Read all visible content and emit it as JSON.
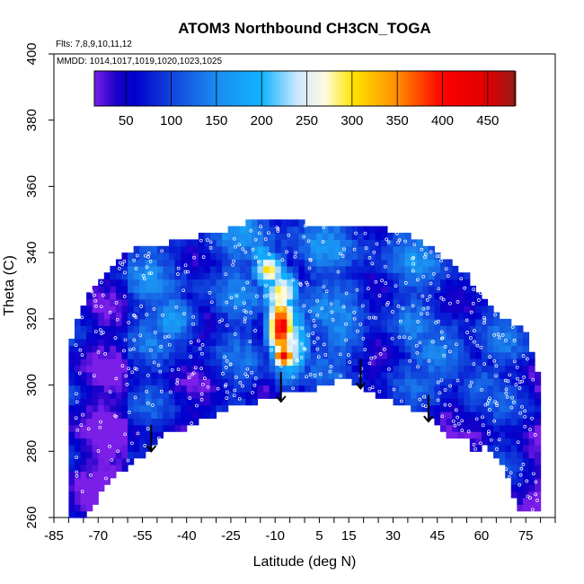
{
  "chart_data": {
    "type": "heatmap",
    "title": "ATOM3 Northbound CH3CN_TOGA",
    "annotations": {
      "flights": "Flts: 7,8,9,10,11,12",
      "dates": "MMDD: 1014,1017,1019,1020,1023,1025"
    },
    "xlabel": "Latitude (deg N)",
    "ylabel": "Theta (C)",
    "xlim": [
      -85,
      85
    ],
    "ylim": [
      260,
      400
    ],
    "x_ticks": [
      -85,
      -80,
      -75,
      -70,
      -65,
      -60,
      -55,
      -50,
      -45,
      -40,
      -35,
      -30,
      -25,
      -20,
      -15,
      -10,
      -5,
      0,
      5,
      10,
      15,
      20,
      25,
      30,
      35,
      40,
      45,
      50,
      55,
      60,
      65,
      70,
      75,
      80,
      85
    ],
    "x_tick_labels": [
      "-85",
      "-70",
      "-55",
      "-40",
      "-25",
      "-10",
      "5",
      "15",
      "30",
      "45",
      "60",
      "75"
    ],
    "x_tick_label_values": [
      -85,
      -70,
      -55,
      -40,
      -25,
      -10,
      5,
      15,
      30,
      45,
      60,
      75
    ],
    "y_ticks": [
      260,
      280,
      300,
      320,
      340,
      360,
      380,
      400
    ],
    "y_tick_labels": [
      "260",
      "280",
      "300",
      "320",
      "340",
      "360",
      "380",
      "400"
    ],
    "colorbar": {
      "range": [
        15,
        480
      ],
      "ticks": [
        50,
        100,
        150,
        200,
        250,
        300,
        350,
        400,
        450
      ],
      "tick_labels": [
        "50",
        "100",
        "150",
        "200",
        "250",
        "300",
        "350",
        "400",
        "450"
      ],
      "colors": [
        [
          15,
          "#7a1ee8"
        ],
        [
          40,
          "#1a00c8"
        ],
        [
          60,
          "#0000cc"
        ],
        [
          100,
          "#1144dd"
        ],
        [
          150,
          "#1b8cf0"
        ],
        [
          200,
          "#0fb4ff"
        ],
        [
          240,
          "#cfe8ff"
        ],
        [
          270,
          "#fffbe0"
        ],
        [
          300,
          "#ffe600"
        ],
        [
          350,
          "#ff8c00"
        ],
        [
          400,
          "#ff0000"
        ],
        [
          450,
          "#dd0000"
        ],
        [
          480,
          "#9a1a1a"
        ]
      ]
    },
    "surface_boundary": [
      [
        -76,
        260
      ],
      [
        -72,
        262
      ],
      [
        -68,
        270
      ],
      [
        -55,
        279
      ],
      [
        -48,
        285
      ],
      [
        -41,
        287
      ],
      [
        -26,
        293
      ],
      [
        -8,
        297
      ],
      [
        4,
        299
      ],
      [
        13,
        302
      ],
      [
        18,
        300
      ],
      [
        27,
        296
      ],
      [
        37,
        293
      ],
      [
        43,
        291
      ],
      [
        50,
        284
      ],
      [
        55,
        285
      ],
      [
        58,
        279
      ],
      [
        61,
        283
      ],
      [
        66,
        278
      ],
      [
        70,
        271
      ],
      [
        72,
        262
      ]
    ],
    "top_boundary": [
      [
        -80,
        310
      ],
      [
        -78,
        318
      ],
      [
        -73,
        328
      ],
      [
        -66,
        336
      ],
      [
        -58,
        341
      ],
      [
        -45,
        343
      ],
      [
        -30,
        346
      ],
      [
        -20,
        349
      ],
      [
        0,
        349
      ],
      [
        20,
        348
      ],
      [
        35,
        346
      ],
      [
        45,
        340
      ],
      [
        55,
        333
      ],
      [
        65,
        322
      ],
      [
        75,
        316
      ],
      [
        79,
        304
      ]
    ],
    "plumes": [
      {
        "lat": -8,
        "theta": 318,
        "dlat": 5,
        "dtheta": 11,
        "value": 420
      },
      {
        "lat": -7,
        "theta": 309,
        "dlat": 4,
        "dtheta": 4,
        "value": 440
      },
      {
        "lat": -12,
        "theta": 335,
        "dlat": 6,
        "dtheta": 6,
        "value": 300
      },
      {
        "lat": -8,
        "theta": 328,
        "dlat": 7,
        "dtheta": 8,
        "value": 290
      },
      {
        "lat": -5,
        "theta": 313,
        "dlat": 8,
        "dtheta": 14,
        "value": 260
      },
      {
        "lat": -15,
        "theta": 340,
        "dlat": 4,
        "dtheta": 5,
        "value": 210
      },
      {
        "lat": -45,
        "theta": 320,
        "dlat": 10,
        "dtheta": 10,
        "value": 170
      },
      {
        "lat": 12,
        "theta": 320,
        "dlat": 12,
        "dtheta": 18,
        "value": 150
      },
      {
        "lat": 45,
        "theta": 310,
        "dlat": 15,
        "dtheta": 15,
        "value": 140
      },
      {
        "lat": 60,
        "theta": 300,
        "dlat": 12,
        "dtheta": 12,
        "value": 120
      }
    ],
    "surface_arrows": [
      {
        "lat": -52,
        "theta_top": 288,
        "theta_tip": 280
      },
      {
        "lat": -8,
        "theta_top": 304,
        "theta_tip": 295
      },
      {
        "lat": 19,
        "theta_top": 308,
        "theta_tip": 299
      },
      {
        "lat": 42,
        "theta_top": 297,
        "theta_tip": 289
      }
    ],
    "grid": false,
    "legend": "colorbar-top-inside"
  }
}
